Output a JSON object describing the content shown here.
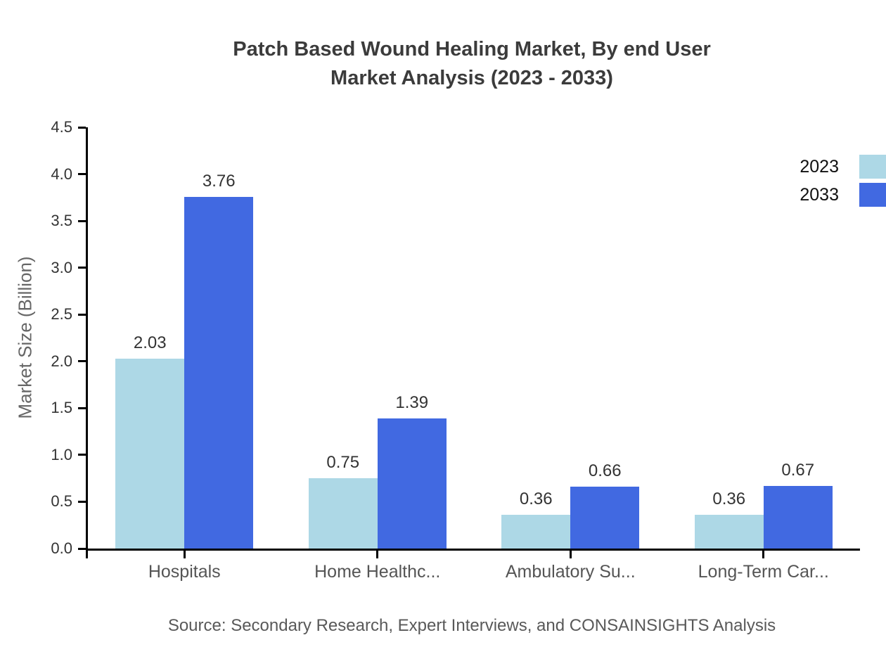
{
  "header": {
    "title_line1": "Patch Based Wound Healing Market, By end User",
    "title_line2": "Market Analysis (2023 - 2033)"
  },
  "footer": {
    "source": "Source: Secondary Research, Expert Interviews, and CONSAINSIGHTS Analysis"
  },
  "chart_data": {
    "type": "bar",
    "title": "Patch Based Wound Healing Market, By end User Market Analysis (2023 - 2033)",
    "categories": [
      "Hospitals",
      "Home Healthc...",
      "Ambulatory Su...",
      "Long-Term Car..."
    ],
    "series": [
      {
        "name": "2023",
        "color": "#ADD8E6",
        "values": [
          2.03,
          0.75,
          0.36,
          0.36
        ]
      },
      {
        "name": "2033",
        "color": "#4169E1",
        "values": [
          3.76,
          1.39,
          0.66,
          0.67
        ]
      }
    ],
    "xlabel": "",
    "ylabel": "Market Size (Billion)",
    "ylim": [
      0,
      4.5
    ],
    "yticks": [
      0.0,
      0.5,
      1.0,
      1.5,
      2.0,
      2.5,
      3.0,
      3.5,
      4.0,
      4.5
    ],
    "grid": false,
    "bar_value_labels": true,
    "legend_position": "top-right-edge",
    "colors": {
      "axis": "#000000",
      "tick_label": "#333333",
      "axis_title": "#666666",
      "category_label": "#555555",
      "value_label": "#333333",
      "title": "#3b3b3b",
      "source": "#595959"
    }
  }
}
